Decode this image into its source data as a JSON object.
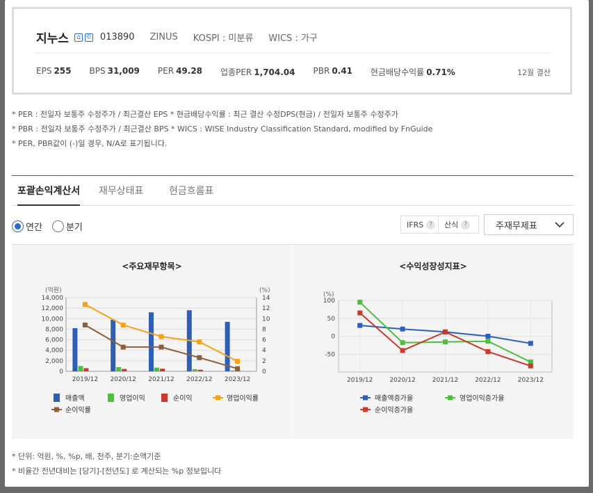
{
  "company": {
    "name": "지누스",
    "code": "013890",
    "eng_name": "ZINUS",
    "market": "KOSPI : 미분류",
    "wics": "WICS : 가구",
    "icons": [
      "home-icon",
      "copyright-icon"
    ]
  },
  "stats": [
    {
      "label": "EPS",
      "value": "255"
    },
    {
      "label": "BPS",
      "value": "31,009"
    },
    {
      "label": "PER",
      "value": "49.28"
    },
    {
      "label": "업종PER",
      "value": "1,704.04"
    },
    {
      "label": "PBR",
      "value": "0.41"
    },
    {
      "label": "현금배당수익률",
      "value": "0.71%"
    }
  ],
  "settlement": "12월 결산",
  "notes": [
    "* PER : 전일자 보통주 수정주가 / 최근결산 EPS * 현금배당수익률 : 최근 결산 수정DPS(현금) / 전일자 보통주 수정주가",
    "* PBR : 전일자 보통주 수정주가 / 최근결산 BPS * WICS : WISE Industry Classification Standard, modified by FnGuide",
    "* PER, PBR값이 (-)일 경우, N/A로 표기됩니다."
  ],
  "tabs": [
    "포괄손익계산서",
    "재무상태표",
    "현금흐름표"
  ],
  "period": {
    "annual": "연간",
    "quarter": "분기",
    "selected": "annual"
  },
  "controls": {
    "ifrs": "IFRS",
    "calc": "산식",
    "help": "?",
    "dropdown": "주재무제표"
  },
  "footer_notes": [
    "* 단위: 억원, %, %p, 배, 천주, 분기:순액기준",
    "* 비율간 전년대비는 [당기]-[전년도] 로 계산되는 %p 정보입니다"
  ],
  "colors": {
    "revenue": "#2f5fb3",
    "op_income": "#4cbf3c",
    "net_income": "#c83a2c",
    "op_margin": "#f5a21b",
    "net_margin": "#8b5e3c"
  },
  "chart_data": [
    {
      "type": "bar",
      "title": "<주요재무항목>",
      "ylabel_left": "(억원)",
      "ylabel_right": "(%)",
      "categories": [
        "2019/12",
        "2020/12",
        "2021/12",
        "2022/12",
        "2023/12"
      ],
      "ylim_left": [
        0,
        14000
      ],
      "yticks_left": [
        "0",
        "2,000",
        "4,000",
        "6,000",
        "8,000",
        "10,000",
        "12,000",
        "14,000"
      ],
      "ylim_right": [
        0,
        14
      ],
      "yticks_right": [
        "0",
        "2",
        "4",
        "6",
        "8",
        "10",
        "12",
        "14"
      ],
      "series": [
        {
          "name": "매출액",
          "kind": "bar",
          "axis": "left",
          "values": [
            8200,
            9800,
            11200,
            11600,
            9400
          ]
        },
        {
          "name": "영업이익",
          "kind": "bar",
          "axis": "left",
          "values": [
            1000,
            800,
            700,
            400,
            150
          ]
        },
        {
          "name": "순이익",
          "kind": "bar",
          "axis": "left",
          "values": [
            600,
            450,
            500,
            300,
            80
          ]
        },
        {
          "name": "영업이익률",
          "kind": "line",
          "axis": "right",
          "values": [
            12.7,
            8.8,
            6.6,
            5.6,
            1.9
          ]
        },
        {
          "name": "순이익률",
          "kind": "line",
          "axis": "right",
          "values": [
            8.8,
            4.6,
            4.6,
            2.6,
            0.5
          ]
        }
      ],
      "grid": true,
      "legend": "bottom"
    },
    {
      "type": "line",
      "title": "<수익성장성지표>",
      "ylabel": "(%)",
      "categories": [
        "2019/12",
        "2020/12",
        "2021/12",
        "2022/12",
        "2023/12"
      ],
      "ylim": [
        -100,
        100
      ],
      "yticks": [
        "-50",
        "0",
        "50",
        "100"
      ],
      "series": [
        {
          "name": "매출액증가율",
          "values": [
            30,
            20,
            12,
            0,
            -20
          ]
        },
        {
          "name": "영업이익증가율",
          "values": [
            95,
            -18,
            -16,
            -14,
            -72
          ]
        },
        {
          "name": "순이익증가율",
          "values": [
            65,
            -40,
            12,
            -43,
            -83
          ]
        }
      ],
      "grid": true,
      "legend": "bottom"
    }
  ]
}
